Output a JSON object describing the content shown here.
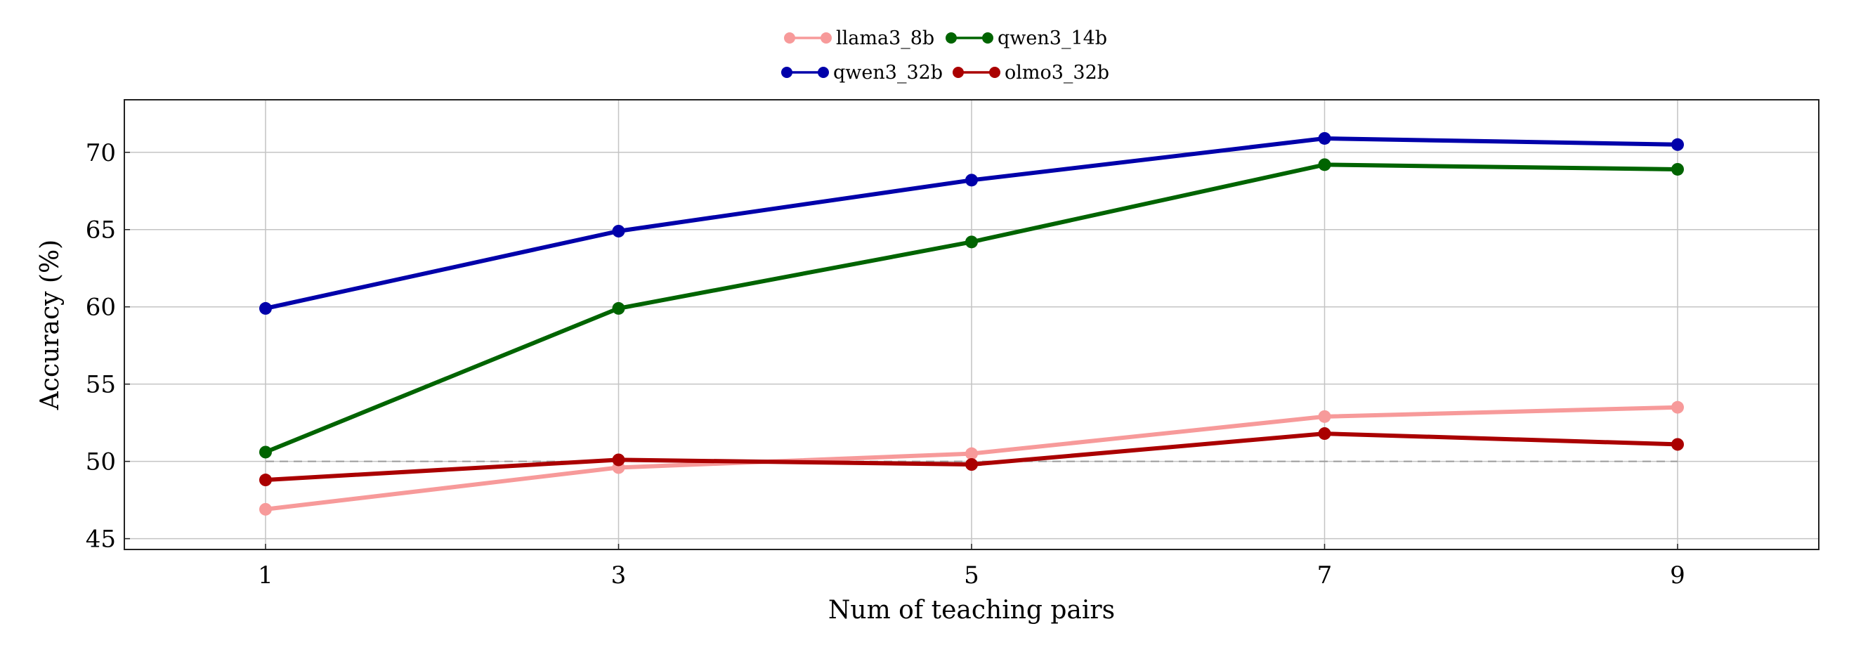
{
  "chart_data": {
    "type": "line",
    "xlabel": "Num of teaching pairs",
    "ylabel": "Accuracy (%)",
    "x": [
      1,
      3,
      5,
      7,
      9
    ],
    "x_ticks": [
      "1",
      "3",
      "5",
      "7",
      "9"
    ],
    "y_ticks": [
      "45",
      "50",
      "55",
      "60",
      "65",
      "70"
    ],
    "xlim": [
      0.2,
      9.8
    ],
    "ylim": [
      44.3,
      73.4
    ],
    "grid": true,
    "legend_position": "top-center",
    "reference_line": {
      "y": 50,
      "style": "dashed",
      "color": "#9a9a9a"
    },
    "series": [
      {
        "name": "llama3_8b",
        "color": "#f79a9a",
        "values": [
          46.9,
          49.6,
          50.5,
          52.9,
          53.5
        ]
      },
      {
        "name": "qwen3_14b",
        "color": "#006400",
        "values": [
          50.6,
          59.9,
          64.2,
          69.2,
          68.9
        ]
      },
      {
        "name": "qwen3_32b",
        "color": "#0000aa",
        "values": [
          59.9,
          64.9,
          68.2,
          70.9,
          70.5
        ]
      },
      {
        "name": "olmo3_32b",
        "color": "#aa0000",
        "values": [
          48.8,
          50.1,
          49.8,
          51.8,
          51.1
        ]
      }
    ]
  }
}
